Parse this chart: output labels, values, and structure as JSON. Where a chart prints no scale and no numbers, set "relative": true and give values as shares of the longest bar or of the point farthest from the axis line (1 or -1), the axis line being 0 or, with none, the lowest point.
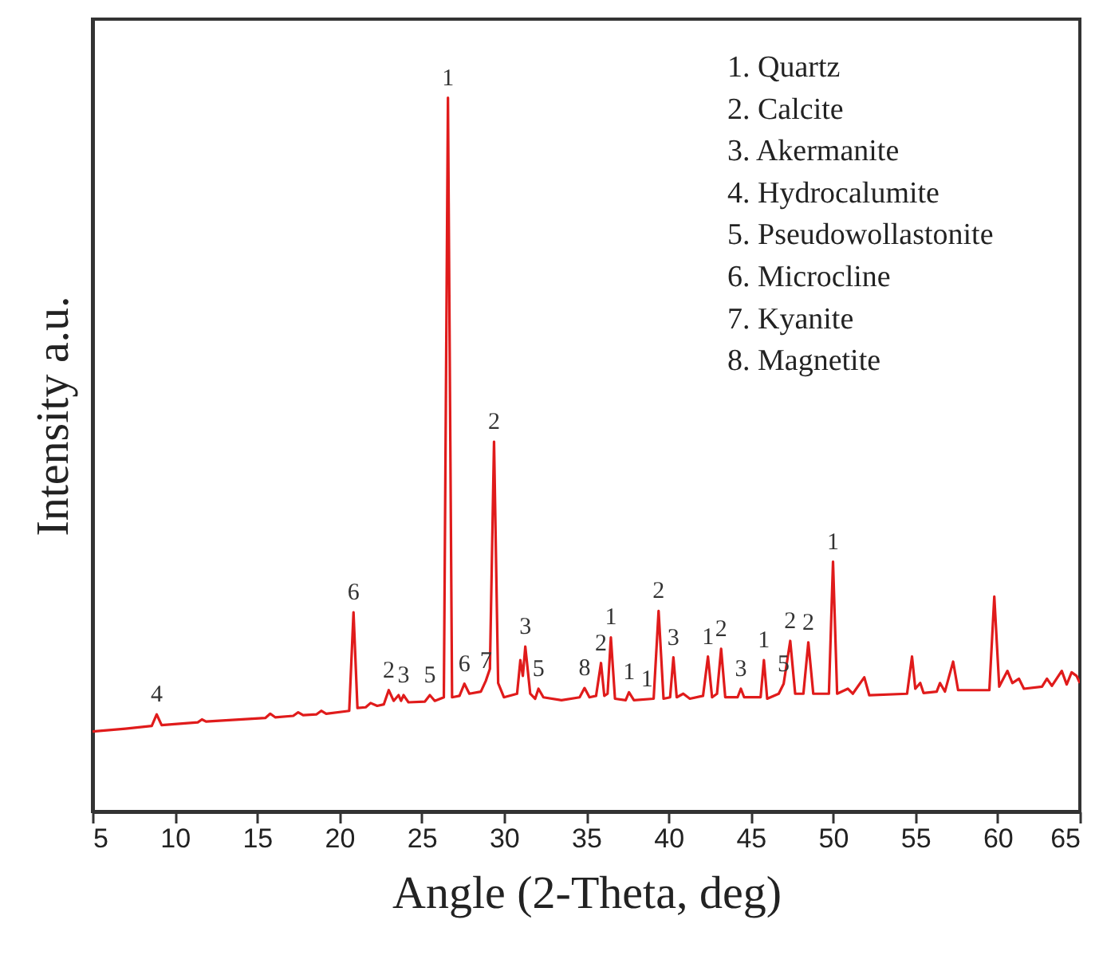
{
  "chart_data": {
    "type": "line",
    "relative": true,
    "xlabel": "Angle (2-Theta, deg)",
    "ylabel": "Intensity a.u.",
    "xlim": [
      5,
      65
    ],
    "xticks": [
      5,
      10,
      15,
      20,
      25,
      30,
      35,
      40,
      45,
      50,
      55,
      60,
      65
    ],
    "tick_labels": "x",
    "grid": false,
    "x": [
      5,
      7,
      8.6,
      8.9,
      9.2,
      11.4,
      11.65,
      11.9,
      15.5,
      15.8,
      16.1,
      17.2,
      17.5,
      17.8,
      18.6,
      18.9,
      19.2,
      20.6,
      20.86,
      21.1,
      21.6,
      21.9,
      22.3,
      22.7,
      23.0,
      23.3,
      23.6,
      23.75,
      23.9,
      24.2,
      25.2,
      25.5,
      25.8,
      26.35,
      26.6,
      26.85,
      27.3,
      27.6,
      27.9,
      28.6,
      28.9,
      29.15,
      29.4,
      29.65,
      30.0,
      30.8,
      31.0,
      31.15,
      31.3,
      31.6,
      31.9,
      32.1,
      32.4,
      33.5,
      34.6,
      34.9,
      35.2,
      35.6,
      35.9,
      36.1,
      36.3,
      36.5,
      36.75,
      37.4,
      37.6,
      37.9,
      39.1,
      39.4,
      39.7,
      40.1,
      40.3,
      40.5,
      40.9,
      41.3,
      42.1,
      42.4,
      42.65,
      42.95,
      43.2,
      43.45,
      44.2,
      44.4,
      44.6,
      45.6,
      45.8,
      46.0,
      46.7,
      47.0,
      47.4,
      47.7,
      48.2,
      48.5,
      48.8,
      49.75,
      50.0,
      50.25,
      50.9,
      51.2,
      51.9,
      52.2,
      54.5,
      54.8,
      55.0,
      55.3,
      55.5,
      56.3,
      56.5,
      56.8,
      57.3,
      57.6,
      59.5,
      59.8,
      60.1,
      60.6,
      60.9,
      61.3,
      61.6,
      62.7,
      63.0,
      63.3,
      63.9,
      64.2,
      64.5,
      64.8,
      65
    ],
    "series": [
      {
        "color": "#e01b1b",
        "values": [
          0.112,
          0.116,
          0.12,
          0.136,
          0.121,
          0.125,
          0.129,
          0.126,
          0.131,
          0.137,
          0.132,
          0.134,
          0.139,
          0.135,
          0.136,
          0.141,
          0.137,
          0.141,
          0.279,
          0.145,
          0.146,
          0.152,
          0.148,
          0.15,
          0.17,
          0.155,
          0.163,
          0.155,
          0.163,
          0.153,
          0.154,
          0.163,
          0.155,
          0.16,
          1.0,
          0.16,
          0.162,
          0.179,
          0.165,
          0.168,
          0.183,
          0.2,
          0.518,
          0.18,
          0.16,
          0.165,
          0.212,
          0.19,
          0.231,
          0.165,
          0.158,
          0.172,
          0.16,
          0.156,
          0.16,
          0.173,
          0.16,
          0.162,
          0.208,
          0.162,
          0.165,
          0.244,
          0.158,
          0.156,
          0.167,
          0.156,
          0.158,
          0.281,
          0.158,
          0.16,
          0.216,
          0.16,
          0.165,
          0.158,
          0.162,
          0.217,
          0.16,
          0.165,
          0.228,
          0.16,
          0.16,
          0.172,
          0.16,
          0.16,
          0.212,
          0.158,
          0.165,
          0.179,
          0.239,
          0.165,
          0.165,
          0.237,
          0.165,
          0.165,
          0.35,
          0.165,
          0.172,
          0.165,
          0.188,
          0.163,
          0.165,
          0.217,
          0.172,
          0.18,
          0.166,
          0.168,
          0.18,
          0.168,
          0.21,
          0.17,
          0.17,
          0.301,
          0.175,
          0.197,
          0.18,
          0.186,
          0.172,
          0.175,
          0.186,
          0.176,
          0.197,
          0.178,
          0.195,
          0.19,
          0.18
        ]
      }
    ],
    "annotations": [
      {
        "text": "4",
        "x": 8.9,
        "y": 0.136
      },
      {
        "text": "6",
        "x": 20.86,
        "y": 0.279
      },
      {
        "text": "2",
        "x": 23.0,
        "y": 0.17
      },
      {
        "text": "3",
        "x": 23.9,
        "y": 0.163
      },
      {
        "text": "5",
        "x": 25.5,
        "y": 0.163
      },
      {
        "text": "1",
        "x": 26.6,
        "y": 1.0
      },
      {
        "text": "6",
        "x": 27.6,
        "y": 0.179
      },
      {
        "text": "7",
        "x": 28.9,
        "y": 0.183
      },
      {
        "text": "2",
        "x": 29.4,
        "y": 0.518
      },
      {
        "text": "3",
        "x": 31.3,
        "y": 0.231
      },
      {
        "text": "5",
        "x": 32.1,
        "y": 0.172
      },
      {
        "text": "8",
        "x": 34.9,
        "y": 0.173
      },
      {
        "text": "2",
        "x": 35.9,
        "y": 0.208
      },
      {
        "text": "1",
        "x": 36.5,
        "y": 0.244
      },
      {
        "text": "1",
        "x": 37.6,
        "y": 0.167
      },
      {
        "text": "1",
        "x": 38.7,
        "y": 0.158
      },
      {
        "text": "2",
        "x": 39.4,
        "y": 0.281
      },
      {
        "text": "3",
        "x": 40.3,
        "y": 0.216
      },
      {
        "text": "1",
        "x": 42.4,
        "y": 0.217
      },
      {
        "text": "2",
        "x": 43.2,
        "y": 0.228
      },
      {
        "text": "3",
        "x": 44.4,
        "y": 0.172
      },
      {
        "text": "1",
        "x": 45.8,
        "y": 0.212
      },
      {
        "text": "5",
        "x": 47.0,
        "y": 0.179
      },
      {
        "text": "2",
        "x": 47.4,
        "y": 0.239
      },
      {
        "text": "2",
        "x": 48.5,
        "y": 0.237
      },
      {
        "text": "1",
        "x": 50.0,
        "y": 0.35
      },
      "1. Quartz",
      "2. Calcite",
      "3. Akermanite",
      "4. Hydrocalumite",
      "5. Pseudowollastonite",
      "6. Microcline",
      "7. Kyanite",
      "8. Magnetite"
    ]
  }
}
